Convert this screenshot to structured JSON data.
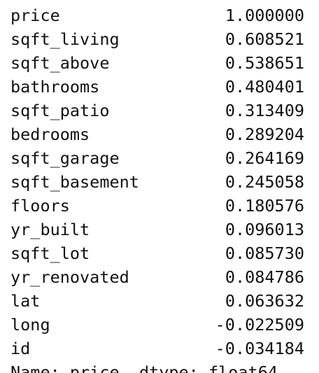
{
  "series": {
    "rows": [
      {
        "name": "price",
        "value": "1.000000"
      },
      {
        "name": "sqft_living",
        "value": "0.608521"
      },
      {
        "name": "sqft_above",
        "value": "0.538651"
      },
      {
        "name": "bathrooms",
        "value": "0.480401"
      },
      {
        "name": "sqft_patio",
        "value": "0.313409"
      },
      {
        "name": "bedrooms",
        "value": "0.289204"
      },
      {
        "name": "sqft_garage",
        "value": "0.264169"
      },
      {
        "name": "sqft_basement",
        "value": "0.245058"
      },
      {
        "name": "floors",
        "value": "0.180576"
      },
      {
        "name": "yr_built",
        "value": "0.096013"
      },
      {
        "name": "sqft_lot",
        "value": "0.085730"
      },
      {
        "name": "yr_renovated",
        "value": "0.084786"
      },
      {
        "name": "lat",
        "value": "0.063632"
      },
      {
        "name": "long",
        "value": "-0.022509"
      },
      {
        "name": "id",
        "value": "-0.034184"
      }
    ],
    "footer_partial": "Name: price, dtype: float64"
  }
}
